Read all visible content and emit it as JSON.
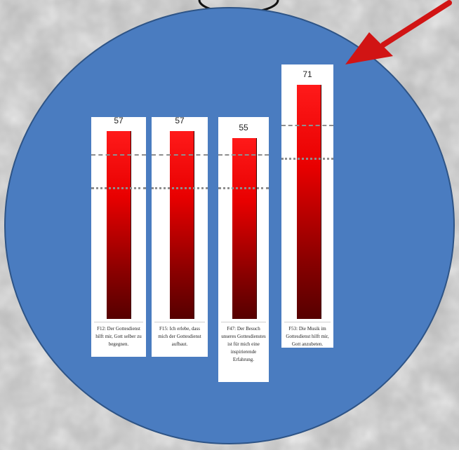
{
  "colors": {
    "circle_fill": "#4a7cc0",
    "circle_stroke": "#2e5486",
    "bar_top": "#ff1a1a",
    "bar_bottom": "#560000",
    "arrow": "#d11414",
    "reference_line": "#8e8e8e"
  },
  "icons": {
    "pointer": "red-arrow-icon"
  },
  "chart_data": {
    "type": "bar",
    "categories": [
      "F12: Der Gottesdienst hilft mir, Gott selber zu begegnen.",
      "F15: Ich erlebe, dass mich der Gottesdienst aufbaut.",
      "F47: Der Besuch unseres Gottesdienstes ist für mich eine inspirierende Erfahrung.",
      "F53: Die Musik im Gottesdienst hilft mir, Gott anzubeten."
    ],
    "values": [
      57,
      57,
      55,
      71
    ],
    "value_labels": [
      "57",
      "57",
      "55",
      "71"
    ],
    "title": "",
    "xlabel": "",
    "ylabel": "",
    "grid": false,
    "legend": "none",
    "reference_lines": {
      "dashed": 50,
      "dotted": 40
    }
  }
}
